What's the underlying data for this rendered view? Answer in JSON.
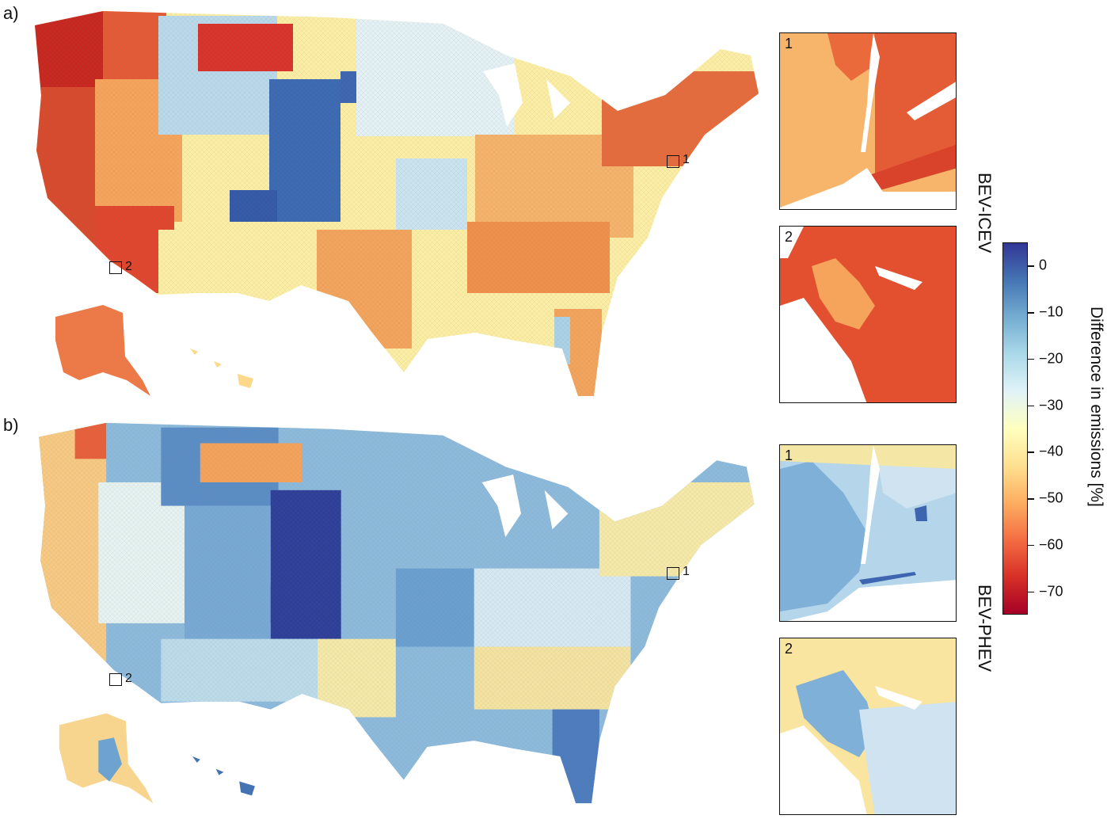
{
  "panels": [
    {
      "id": "a",
      "label": "a)",
      "row_label": "BEV-ICEV",
      "inset_labels": [
        "1",
        "2"
      ],
      "marker_labels": [
        "1",
        "2"
      ]
    },
    {
      "id": "b",
      "label": "b)",
      "row_label": "BEV-PHEV",
      "inset_labels": [
        "1",
        "2"
      ],
      "marker_labels": [
        "1",
        "2"
      ]
    }
  ],
  "colorbar": {
    "title": "Difference in emissions [%]",
    "ticks": [
      "0",
      "−10",
      "−20",
      "−30",
      "−40",
      "−50",
      "−60",
      "−70"
    ],
    "range": [
      -75,
      5
    ],
    "colors": [
      "#a50026",
      "#d73027",
      "#f46d43",
      "#fdae61",
      "#fee090",
      "#ffffbf",
      "#e0f3f8",
      "#abd9e9",
      "#74add1",
      "#4575b4",
      "#313695"
    ]
  }
}
